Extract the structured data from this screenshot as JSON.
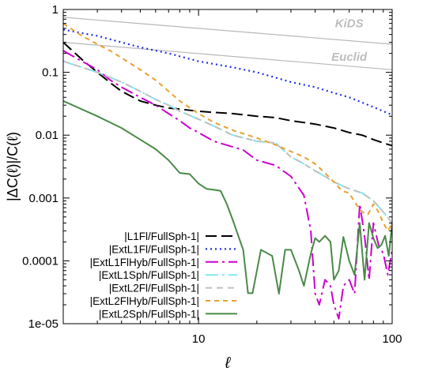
{
  "chart_data": {
    "type": "line",
    "xlabel": "ℓ",
    "ylabel": "|ΔC(ℓ)|/C(ℓ)",
    "xscale": "log",
    "yscale": "log",
    "xlim": [
      2,
      100
    ],
    "ylim": [
      1e-05,
      1
    ],
    "xticks": [
      {
        "value": 10,
        "label": "10"
      },
      {
        "value": 100,
        "label": "100"
      }
    ],
    "yticks": [
      {
        "value": 1,
        "label": "1"
      },
      {
        "value": 0.1,
        "label": "0.1"
      },
      {
        "value": 0.01,
        "label": "0.01"
      },
      {
        "value": 0.001,
        "label": "0.001"
      },
      {
        "value": 0.0001,
        "label": "0.0001"
      },
      {
        "value": 1e-05,
        "label": "1e-05"
      }
    ],
    "legend_position": "bottom-left",
    "reference_lines": [
      {
        "label": "KiDS",
        "color": "#b8b8b8",
        "points": [
          [
            2,
            0.75
          ],
          [
            100,
            0.28
          ]
        ],
        "label_at": [
          60,
          0.52
        ]
      },
      {
        "label": "Euclid",
        "color": "#b8b8b8",
        "points": [
          [
            2,
            0.3
          ],
          [
            100,
            0.11
          ]
        ],
        "label_at": [
          60,
          0.152
        ]
      }
    ],
    "series": [
      {
        "name": "|L1Fl/FullSph-1|",
        "color": "#000000",
        "dash": "14,6",
        "width": 2,
        "points": [
          [
            2,
            0.3
          ],
          [
            2.5,
            0.16
          ],
          [
            3,
            0.1
          ],
          [
            3.5,
            0.068
          ],
          [
            4,
            0.05
          ],
          [
            5,
            0.035
          ],
          [
            6,
            0.03
          ],
          [
            7,
            0.027
          ],
          [
            8,
            0.026
          ],
          [
            10,
            0.024
          ],
          [
            12,
            0.023
          ],
          [
            15,
            0.022
          ],
          [
            20,
            0.02
          ],
          [
            25,
            0.019
          ],
          [
            30,
            0.017
          ],
          [
            40,
            0.015
          ],
          [
            50,
            0.013
          ],
          [
            60,
            0.011
          ],
          [
            70,
            0.01
          ],
          [
            80,
            0.0085
          ],
          [
            90,
            0.0075
          ],
          [
            100,
            0.0068
          ]
        ]
      },
      {
        "name": "|ExtL1Fl/FullSph-1|",
        "color": "#2030e0",
        "dash": "2,4",
        "width": 2.2,
        "points": [
          [
            2,
            0.48
          ],
          [
            2.5,
            0.42
          ],
          [
            3,
            0.38
          ],
          [
            4,
            0.3
          ],
          [
            5,
            0.25
          ],
          [
            7,
            0.2
          ],
          [
            10,
            0.15
          ],
          [
            15,
            0.12
          ],
          [
            20,
            0.1
          ],
          [
            30,
            0.07
          ],
          [
            40,
            0.058
          ],
          [
            50,
            0.047
          ],
          [
            60,
            0.04
          ],
          [
            70,
            0.033
          ],
          [
            80,
            0.028
          ],
          [
            90,
            0.024
          ],
          [
            100,
            0.021
          ]
        ]
      },
      {
        "name": "|ExtL1FlHyb/FullSph-1|",
        "color": "#cc00cc",
        "dash": "16,5,3,5",
        "width": 2,
        "points": [
          [
            2,
            0.22
          ],
          [
            2.5,
            0.15
          ],
          [
            3,
            0.11
          ],
          [
            3.5,
            0.075
          ],
          [
            4,
            0.058
          ],
          [
            5,
            0.04
          ],
          [
            6,
            0.03
          ],
          [
            7,
            0.022
          ],
          [
            8,
            0.017
          ],
          [
            9,
            0.013
          ],
          [
            10,
            0.011
          ],
          [
            12,
            0.008
          ],
          [
            15,
            0.0065
          ],
          [
            17,
            0.0058
          ],
          [
            20,
            0.004
          ],
          [
            25,
            0.0033
          ],
          [
            30,
            0.0022
          ],
          [
            35,
            0.0011
          ],
          [
            38,
            0.0003
          ],
          [
            40,
            3e-05
          ],
          [
            42,
            2e-05
          ],
          [
            45,
            5e-05
          ],
          [
            48,
            4e-05
          ],
          [
            50,
            2e-05
          ],
          [
            53,
            1.2e-05
          ],
          [
            56,
            4e-05
          ],
          [
            60,
            5e-05
          ],
          [
            64,
            3e-05
          ],
          [
            68,
            0.0008
          ],
          [
            72,
            0.00025
          ],
          [
            76,
            5e-05
          ],
          [
            80,
            0.0004
          ],
          [
            85,
            0.00018
          ],
          [
            90,
            0.00013
          ],
          [
            95,
            6e-05
          ],
          [
            100,
            0.00015
          ]
        ]
      },
      {
        "name": "|ExtL1Sph/FullSph-1|",
        "color": "#80e8f0",
        "dash": "16,5,3,5",
        "width": 2,
        "points": [
          [
            2,
            0.15
          ],
          [
            2.5,
            0.12
          ],
          [
            3,
            0.1
          ],
          [
            4,
            0.07
          ],
          [
            5,
            0.05
          ],
          [
            6,
            0.037
          ],
          [
            7,
            0.03
          ],
          [
            8,
            0.024
          ],
          [
            10,
            0.018
          ],
          [
            12,
            0.014
          ],
          [
            15,
            0.01
          ],
          [
            20,
            0.008
          ],
          [
            25,
            0.0075
          ],
          [
            30,
            0.0045
          ],
          [
            35,
            0.0035
          ],
          [
            40,
            0.0027
          ],
          [
            45,
            0.0022
          ],
          [
            50,
            0.0018
          ],
          [
            60,
            0.0014
          ],
          [
            70,
            0.0012
          ],
          [
            80,
            0.0009
          ],
          [
            90,
            0.0006
          ],
          [
            100,
            0.0004
          ]
        ]
      },
      {
        "name": "|ExtL2Fl/FullSph-1|",
        "color": "#c0c0c0",
        "dash": "8,6",
        "width": 2,
        "points": [
          [
            2,
            0.15
          ],
          [
            2.5,
            0.12
          ],
          [
            3,
            0.1
          ],
          [
            4,
            0.07
          ],
          [
            5,
            0.05
          ],
          [
            6,
            0.037
          ],
          [
            7,
            0.03
          ],
          [
            8,
            0.024
          ],
          [
            10,
            0.018
          ],
          [
            12,
            0.014
          ],
          [
            15,
            0.01
          ],
          [
            20,
            0.008
          ],
          [
            25,
            0.0075
          ],
          [
            30,
            0.0045
          ],
          [
            35,
            0.0035
          ],
          [
            40,
            0.0027
          ],
          [
            45,
            0.0022
          ],
          [
            50,
            0.0018
          ],
          [
            60,
            0.0014
          ],
          [
            70,
            0.0012
          ],
          [
            80,
            0.0009
          ],
          [
            90,
            0.0006
          ],
          [
            100,
            0.0004
          ]
        ]
      },
      {
        "name": "|ExtL2FlHyb/FullSph-1|",
        "color": "#e8a030",
        "dash": "6,5",
        "width": 2,
        "points": [
          [
            2,
            0.6
          ],
          [
            2.5,
            0.38
          ],
          [
            3,
            0.28
          ],
          [
            3.5,
            0.22
          ],
          [
            4,
            0.17
          ],
          [
            5,
            0.11
          ],
          [
            6,
            0.075
          ],
          [
            7,
            0.05
          ],
          [
            8,
            0.035
          ],
          [
            10,
            0.022
          ],
          [
            12,
            0.016
          ],
          [
            15,
            0.012
          ],
          [
            20,
            0.009
          ],
          [
            25,
            0.007
          ],
          [
            30,
            0.0055
          ],
          [
            35,
            0.0045
          ],
          [
            40,
            0.0035
          ],
          [
            45,
            0.0025
          ],
          [
            50,
            0.0018
          ],
          [
            55,
            0.0013
          ],
          [
            60,
            0.0012
          ],
          [
            65,
            0.0008
          ],
          [
            70,
            0.0006
          ],
          [
            75,
            0.00055
          ],
          [
            80,
            0.0008
          ],
          [
            85,
            0.0006
          ],
          [
            90,
            0.0004
          ],
          [
            95,
            0.0003
          ],
          [
            100,
            0.0004
          ]
        ]
      },
      {
        "name": "|ExtL2Sph/FullSph-1|",
        "color": "#4a8a48",
        "dash": "",
        "width": 2,
        "points": [
          [
            2,
            0.035
          ],
          [
            3,
            0.02
          ],
          [
            4,
            0.013
          ],
          [
            5,
            0.0085
          ],
          [
            6,
            0.006
          ],
          [
            7,
            0.004
          ],
          [
            8,
            0.0025
          ],
          [
            9,
            0.0024
          ],
          [
            10,
            0.0017
          ],
          [
            11,
            0.0014
          ],
          [
            12,
            0.00135
          ],
          [
            13,
            0.0013
          ],
          [
            14,
            0.0008
          ],
          [
            15,
            0.00045
          ],
          [
            17,
            0.00015
          ],
          [
            18,
            3.05e-05
          ],
          [
            19,
            3.05e-05
          ],
          [
            21,
            0.00015
          ],
          [
            24,
            0.00012
          ],
          [
            26,
            3e-05
          ],
          [
            28,
            0.00015
          ],
          [
            30,
            0.00015
          ],
          [
            33,
            7e-05
          ],
          [
            35,
            4e-05
          ],
          [
            38,
            0.00013
          ],
          [
            40,
            0.00023
          ],
          [
            42,
            0.0002
          ],
          [
            45,
            0.00025
          ],
          [
            48,
            0.0002
          ],
          [
            50,
            5e-05
          ],
          [
            53,
            7e-05
          ],
          [
            56,
            0.00024
          ],
          [
            60,
            0.0001
          ],
          [
            64,
            6e-05
          ],
          [
            68,
            0.0004
          ],
          [
            72,
            5e-05
          ],
          [
            76,
            0.0004
          ],
          [
            80,
            0.00023
          ],
          [
            84,
            0.00016
          ],
          [
            88,
            0.00018
          ],
          [
            92,
            0.00025
          ],
          [
            96,
            0.00012
          ],
          [
            100,
            0.0004
          ]
        ]
      }
    ]
  }
}
